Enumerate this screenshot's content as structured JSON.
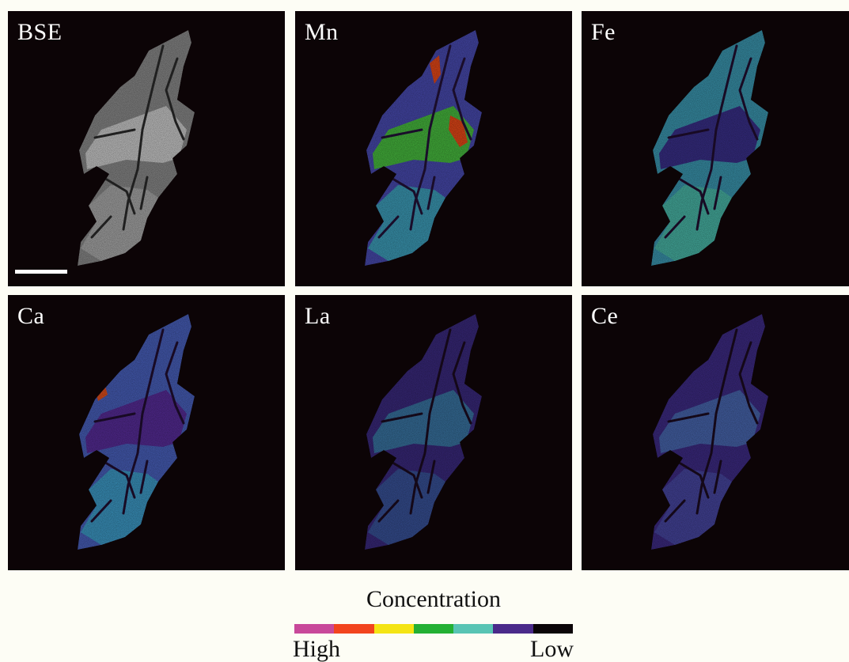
{
  "panels": [
    {
      "label": "BSE",
      "type": "bse",
      "base": "#8e8e8e",
      "mid": "#b4b4b4",
      "hot": "#d6d6d6",
      "cracks": "#202020"
    },
    {
      "label": "Mn",
      "type": "map",
      "base": "#4a4cb4",
      "mid": "#3cb0c0",
      "hot": "#49c63a",
      "peak": "#ee4a18",
      "cracks": "#1a0d2a"
    },
    {
      "label": "Fe",
      "type": "map",
      "base": "#3c9ab4",
      "mid": "#4cc0a8",
      "hot": "#3a2a8a",
      "cracks": "#180a24"
    },
    {
      "label": "Ca",
      "type": "map",
      "base": "#4a62c0",
      "mid": "#3ca8cc",
      "hot": "#5a2a9a",
      "peak": "#e8501c",
      "cracks": "#180a24"
    },
    {
      "label": "La",
      "type": "map",
      "base": "#3b2a80",
      "mid": "#3a5aa0",
      "hot": "#3a7aa6",
      "cracks": "#140818"
    },
    {
      "label": "Ce",
      "type": "map",
      "base": "#3f2c88",
      "mid": "#4a4ca8",
      "hot": "#4a6cb4",
      "cracks": "#140818"
    }
  ],
  "legend": {
    "title": "Concentration",
    "high_label": "High",
    "low_label": "Low",
    "colors": [
      "#c8489a",
      "#f2441e",
      "#f4e414",
      "#24b034",
      "#58c4b4",
      "#4a2a8a",
      "#0b0508"
    ]
  }
}
